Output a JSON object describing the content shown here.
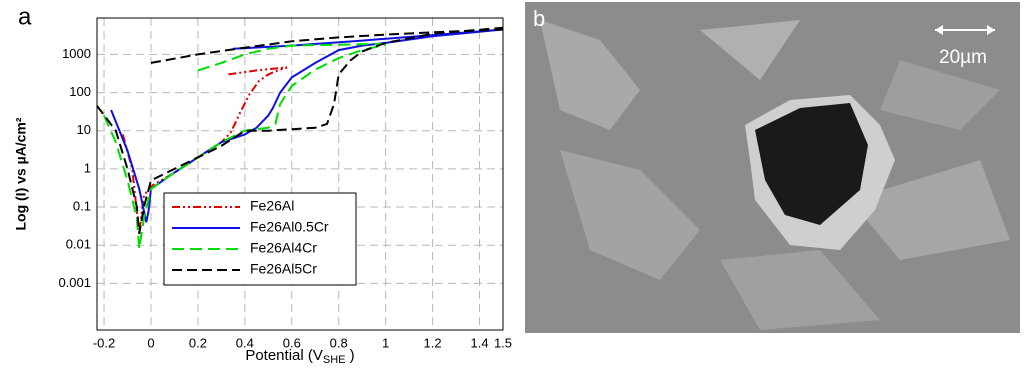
{
  "chart_data": {
    "type": "line",
    "panel_label": "a",
    "x_label": {
      "text": "Potential (V",
      "sub": "SHE",
      "end": " )"
    },
    "y_label": "Log (I) vs µA/cm²",
    "xlim": [
      -0.23,
      1.5
    ],
    "ylim": [
      6e-05,
      9000
    ],
    "y_scale": "log",
    "xticks": [
      -0.2,
      0,
      0.2,
      0.4,
      0.6,
      0.8,
      1,
      1.2,
      1.4,
      1.5
    ],
    "yticks": [
      0.001,
      0.01,
      0.1,
      1,
      10,
      100,
      1000
    ],
    "grid": true,
    "legend": "lower center",
    "series": [
      {
        "name": "Fe26Al",
        "color": "#e00000",
        "dash": "8 3 2 3 2 3",
        "x": [
          -0.12,
          -0.08,
          -0.05,
          -0.03,
          0,
          0.1,
          0.2,
          0.3,
          0.34,
          0.38,
          0.42,
          0.46,
          0.5,
          0.55,
          0.58,
          null,
          0.33,
          0.45,
          0.58
        ],
        "values": [
          8,
          1,
          0.02,
          0.2,
          0.35,
          0.8,
          2,
          5,
          9,
          30,
          90,
          200,
          300,
          400,
          450,
          null,
          300,
          380,
          460
        ]
      },
      {
        "name": "Fe26Al0.5Cr",
        "color": "#1010e0",
        "dash": "",
        "x": [
          -0.17,
          -0.1,
          -0.05,
          -0.02,
          -0.01,
          0,
          0.1,
          0.2,
          0.3,
          0.4,
          0.45,
          0.5,
          0.52,
          0.55,
          0.6,
          0.7,
          0.8,
          0.9,
          1.0,
          1.2,
          1.5,
          null,
          0.35,
          0.6,
          0.9,
          1.2,
          1.5
        ],
        "values": [
          35,
          3,
          0.3,
          0.04,
          0.08,
          0.3,
          0.8,
          2,
          5,
          8,
          12,
          25,
          40,
          100,
          250,
          600,
          1300,
          1700,
          2000,
          3000,
          4500,
          null,
          1400,
          1700,
          2300,
          3200,
          4500
        ]
      },
      {
        "name": "Fe26Al4Cr",
        "color": "#00dd00",
        "dash": "12 6",
        "x": [
          -0.2,
          -0.15,
          -0.1,
          -0.06,
          -0.05,
          -0.03,
          0,
          0.1,
          0.2,
          0.3,
          0.4,
          0.5,
          0.53,
          0.55,
          0.6,
          0.7,
          0.8,
          0.9,
          1.0,
          null,
          0.2,
          0.3,
          0.4,
          0.5,
          0.6,
          0.8,
          1.0
        ],
        "values": [
          25,
          5,
          0.5,
          0.05,
          0.008,
          0.05,
          0.3,
          0.8,
          2,
          5,
          10,
          12,
          15,
          50,
          150,
          400,
          800,
          1300,
          1800,
          null,
          380,
          600,
          1000,
          1400,
          1700,
          1800,
          1900
        ]
      },
      {
        "name": "Fe26Al5Cr",
        "color": "#000000",
        "dash": "10 5",
        "x": [
          -0.23,
          -0.15,
          -0.1,
          -0.06,
          -0.05,
          -0.03,
          0,
          0.1,
          0.2,
          0.3,
          0.4,
          0.5,
          0.6,
          0.7,
          0.75,
          0.78,
          0.8,
          0.85,
          0.9,
          1.0,
          1.2,
          1.5,
          null,
          0,
          0.2,
          0.4,
          0.6,
          0.8,
          1.0,
          1.2,
          1.5
        ],
        "values": [
          45,
          10,
          1,
          0.1,
          0.02,
          0.1,
          0.5,
          1,
          2,
          4,
          10,
          10,
          11,
          12,
          15,
          50,
          300,
          700,
          1200,
          2000,
          3500,
          5000,
          null,
          600,
          1000,
          1500,
          2200,
          2800,
          3300,
          3800,
          4500
        ]
      }
    ]
  },
  "image_panel": {
    "label": "b",
    "scale_bar": "20µm"
  }
}
